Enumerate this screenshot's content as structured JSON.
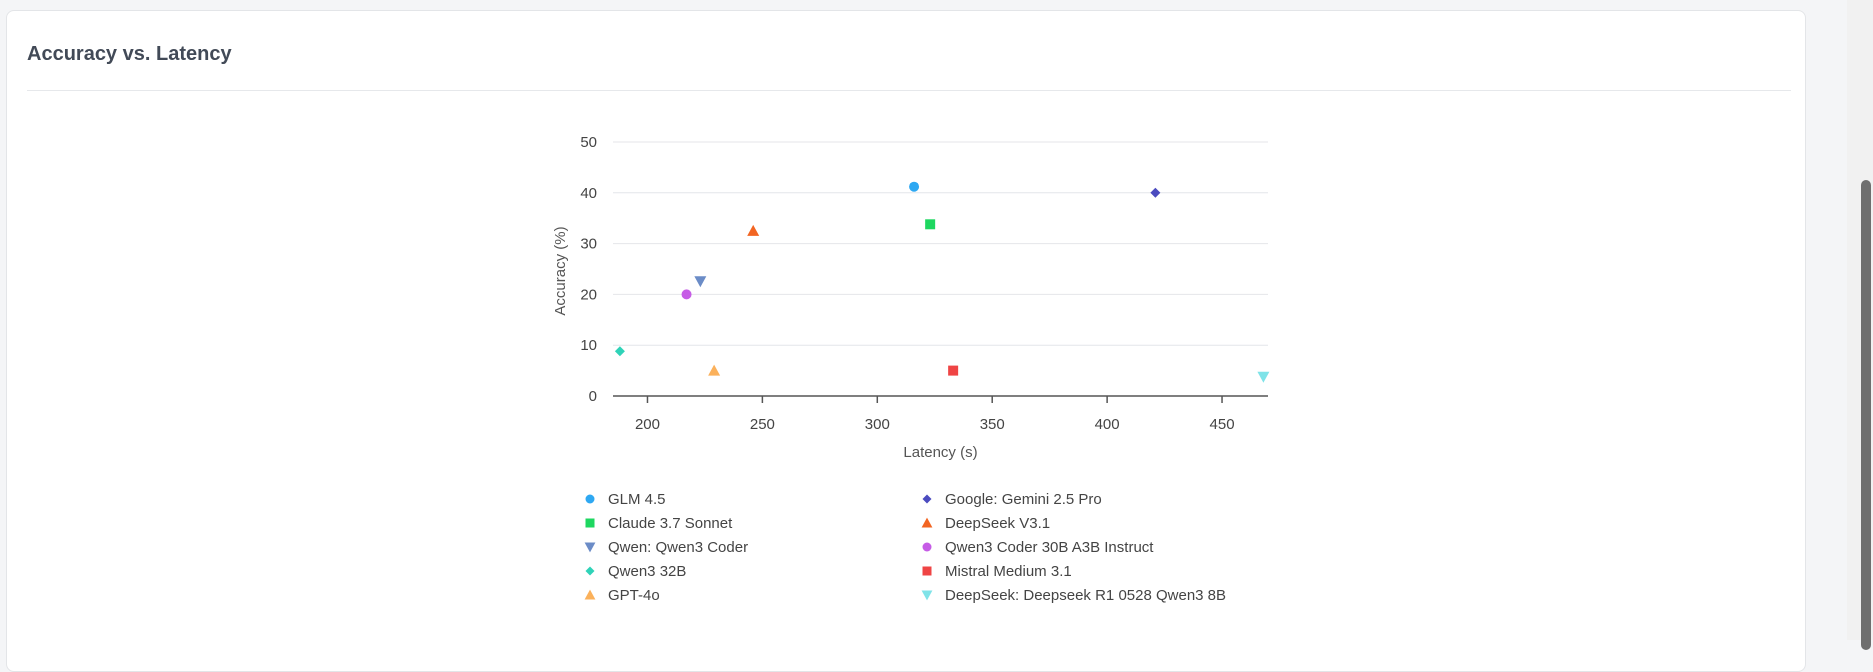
{
  "card": {
    "title": "Accuracy vs. Latency"
  },
  "chart_data": {
    "type": "scatter",
    "title": "Accuracy vs. Latency",
    "xlabel": "Latency (s)",
    "ylabel": "Accuracy (%)",
    "xlim": [
      185,
      470
    ],
    "ylim": [
      0,
      50
    ],
    "xticks": [
      200,
      250,
      300,
      350,
      400,
      450
    ],
    "yticks": [
      0,
      10,
      20,
      30,
      40,
      50
    ],
    "grid": "horizontal",
    "legend_position": "bottom",
    "series": [
      {
        "name": "GLM 4.5",
        "color": "#2ea8f2",
        "marker": "circle",
        "x": 316,
        "y": 41.2
      },
      {
        "name": "Google: Gemini 2.5 Pro",
        "color": "#4b4bbf",
        "marker": "diamond",
        "x": 421,
        "y": 40.0
      },
      {
        "name": "Claude 3.7 Sonnet",
        "color": "#1ed760",
        "marker": "square",
        "x": 323,
        "y": 33.8
      },
      {
        "name": "DeepSeek V3.1",
        "color": "#f26522",
        "marker": "triangle-up",
        "x": 246,
        "y": 32.5
      },
      {
        "name": "Qwen: Qwen3 Coder",
        "color": "#6b8cc7",
        "marker": "triangle-down",
        "x": 223,
        "y": 22.6
      },
      {
        "name": "Qwen3 Coder 30B A3B Instruct",
        "color": "#c65ce6",
        "marker": "circle",
        "x": 217,
        "y": 20.0
      },
      {
        "name": "Qwen3 32B",
        "color": "#2fd3b8",
        "marker": "diamond",
        "x": 188,
        "y": 8.8
      },
      {
        "name": "Mistral Medium 3.1",
        "color": "#ef4444",
        "marker": "square",
        "x": 333,
        "y": 5.0
      },
      {
        "name": "GPT-4o",
        "color": "#fbb15b",
        "marker": "triangle-up",
        "x": 229,
        "y": 5.0
      },
      {
        "name": "DeepSeek: Deepseek R1 0528 Qwen3 8B",
        "color": "#7fe3e8",
        "marker": "triangle-down",
        "x": 468,
        "y": 3.8
      }
    ]
  }
}
